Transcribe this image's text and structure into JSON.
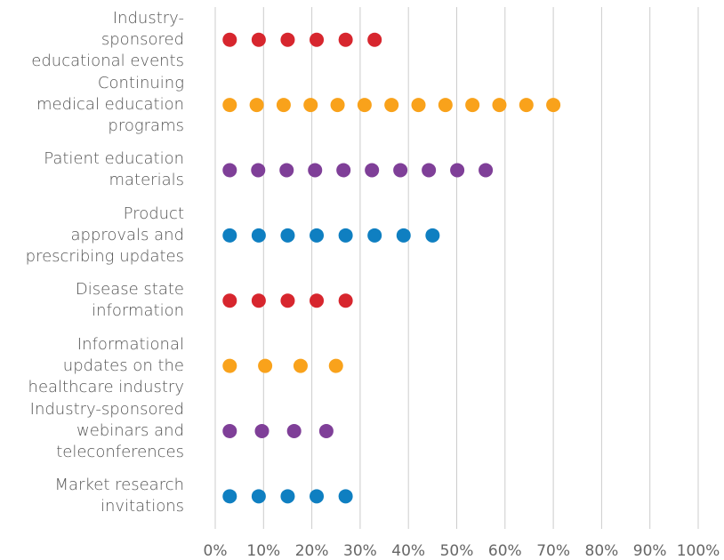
{
  "chart_data": {
    "type": "dot",
    "categories": [
      "Industry-\nsponsored\neducational events",
      "Continuing\nmedical education\nprograms",
      "Patient education\nmaterials",
      "Product\napprovals and\nprescribing updates",
      "Disease state\ninformation",
      "Informational\nupdates on the\nhealthcare industry",
      "Industry-sponsored\nwebinars and\nteleconferences",
      "Market research\ninvitations"
    ],
    "values": [
      33,
      70,
      56,
      45,
      27,
      25,
      23,
      27
    ],
    "colors": [
      "#d7262e",
      "#f9a21b",
      "#7f3f98",
      "#0f7fc1",
      "#d7262e",
      "#f9a21b",
      "#7f3f98",
      "#0f7fc1"
    ],
    "xlim": [
      0,
      100
    ],
    "xticks": [
      {
        "value": 0,
        "label": "0%"
      },
      {
        "value": 10,
        "label": "10%"
      },
      {
        "value": 20,
        "label": "20%"
      },
      {
        "value": 30,
        "label": "30%"
      },
      {
        "value": 40,
        "label": "40%"
      },
      {
        "value": 50,
        "label": "50%"
      },
      {
        "value": 60,
        "label": "60%"
      },
      {
        "value": 70,
        "label": "70%"
      },
      {
        "value": 80,
        "label": "80%"
      },
      {
        "value": 90,
        "label": "90%"
      },
      {
        "value": 100,
        "label": "100%"
      }
    ],
    "grid": true
  }
}
